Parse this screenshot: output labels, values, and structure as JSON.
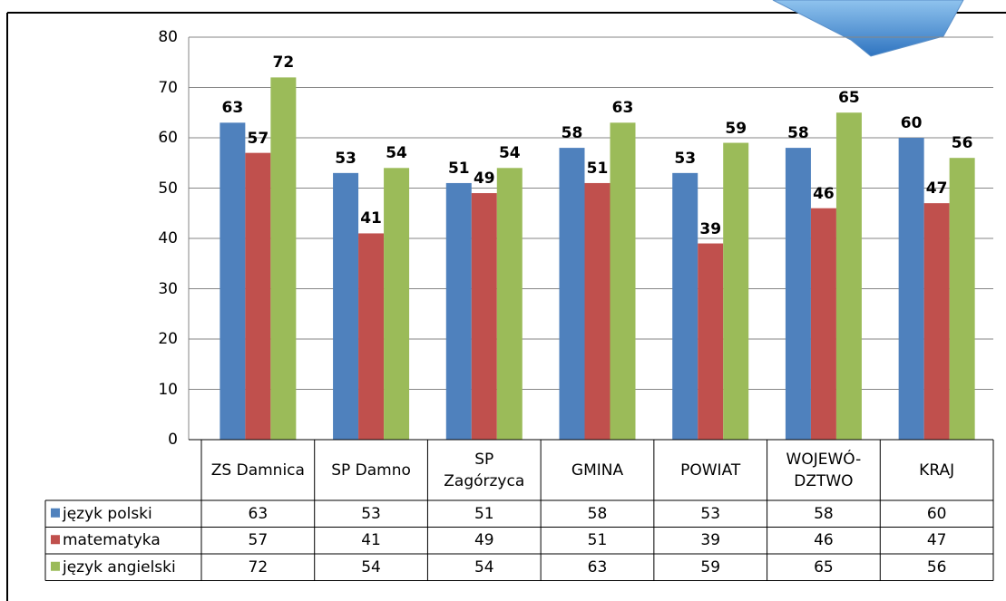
{
  "chart_data": {
    "type": "bar",
    "categories": [
      "ZS Damnica",
      "SP Damno",
      "SP\nZagórzyca",
      "GMINA",
      "POWIAT",
      "WOJEWÓ-\nDZTWO",
      "KRAJ"
    ],
    "series": [
      {
        "name": "język polski",
        "color": "#4f81bd",
        "values": [
          63,
          53,
          51,
          58,
          53,
          58,
          60
        ]
      },
      {
        "name": "matematyka",
        "color": "#c0504d",
        "values": [
          57,
          41,
          49,
          51,
          39,
          46,
          47
        ]
      },
      {
        "name": "język angielski",
        "color": "#9bbb59",
        "values": [
          72,
          54,
          54,
          63,
          59,
          65,
          56
        ]
      }
    ],
    "ylim": [
      0,
      80
    ],
    "yticks": [
      0,
      10,
      20,
      30,
      40,
      50,
      60,
      70,
      80
    ],
    "grid": true,
    "data_table": true
  }
}
